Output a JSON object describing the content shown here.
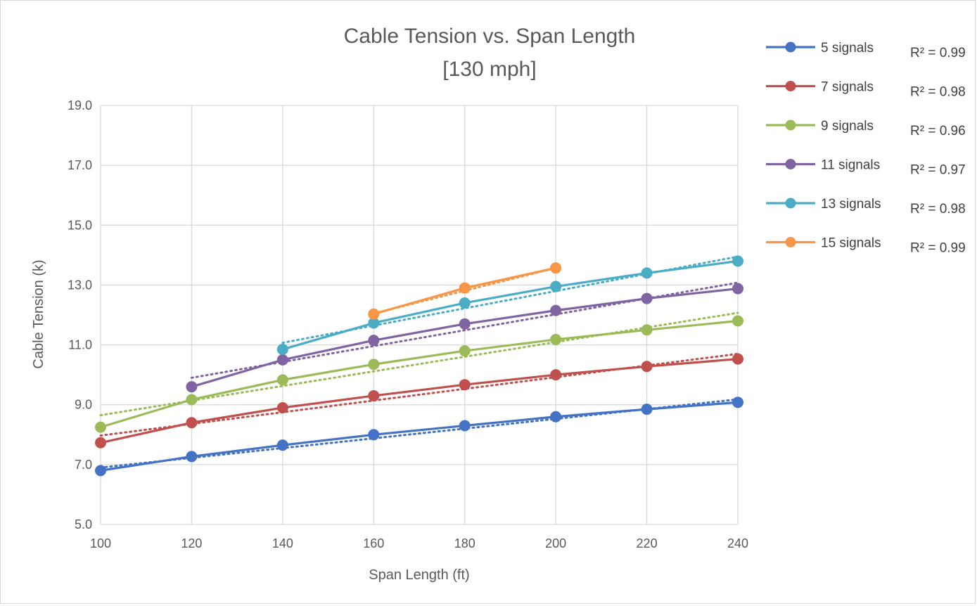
{
  "chart_data": {
    "type": "line",
    "title": "Cable Tension vs. Span Length",
    "subtitle": "[130 mph]",
    "xlabel": "Span Length (ft)",
    "ylabel": "Cable Tension (k)",
    "xlim": [
      100,
      240
    ],
    "ylim": [
      5.0,
      19.0
    ],
    "x_ticks": [
      "100",
      "120",
      "140",
      "160",
      "180",
      "200",
      "220",
      "240"
    ],
    "x_tick_values": [
      100,
      120,
      140,
      160,
      180,
      200,
      220,
      240
    ],
    "y_ticks": [
      "5.0",
      "7.0",
      "9.0",
      "11.0",
      "13.0",
      "15.0",
      "17.0",
      "19.0"
    ],
    "y_tick_values": [
      5,
      7,
      9,
      11,
      13,
      15,
      17,
      19
    ],
    "grid": "vertical and horizontal",
    "legend_position": "right",
    "trendlines": "linear, dotted",
    "series": [
      {
        "name": "5 signals",
        "color": "#4472c4",
        "r2": "R² = 0.99",
        "x": [
          100,
          120,
          140,
          160,
          180,
          200,
          220,
          240
        ],
        "y": [
          6.8,
          7.27,
          7.65,
          8.0,
          8.3,
          8.6,
          8.85,
          9.08
        ],
        "trend": [
          6.9,
          9.18
        ]
      },
      {
        "name": "7 signals",
        "color": "#c0504d",
        "r2": "R² = 0.98",
        "x": [
          100,
          120,
          140,
          160,
          180,
          200,
          220,
          240
        ],
        "y": [
          7.73,
          8.4,
          8.9,
          9.3,
          9.67,
          10.0,
          10.28,
          10.53
        ],
        "trend": [
          7.97,
          10.7
        ]
      },
      {
        "name": "9 signals",
        "color": "#9bbb59",
        "r2": "R² = 0.96",
        "x": [
          100,
          120,
          140,
          160,
          180,
          200,
          220,
          240
        ],
        "y": [
          8.25,
          9.17,
          9.83,
          10.35,
          10.8,
          11.18,
          11.5,
          11.8
        ],
        "trend": [
          8.65,
          12.07
        ]
      },
      {
        "name": "11 signals",
        "color": "#8064a2",
        "r2": "R² = 0.97",
        "x": [
          120,
          140,
          160,
          180,
          200,
          220,
          240
        ],
        "y": [
          9.6,
          10.5,
          11.15,
          11.7,
          12.15,
          12.55,
          12.88
        ],
        "trend": [
          9.9,
          13.08
        ]
      },
      {
        "name": "13 signals",
        "color": "#4bacc6",
        "r2": "R² = 0.98",
        "x": [
          140,
          160,
          180,
          200,
          220,
          240
        ],
        "y": [
          10.85,
          11.73,
          12.4,
          12.95,
          13.4,
          13.8
        ],
        "trend": [
          11.07,
          13.95
        ]
      },
      {
        "name": "15 signals",
        "color": "#f79646",
        "r2": "R² = 0.99",
        "x": [
          160,
          180,
          200
        ],
        "y": [
          12.03,
          12.9,
          13.57
        ],
        "trend": [
          12.05,
          13.57
        ]
      }
    ]
  }
}
